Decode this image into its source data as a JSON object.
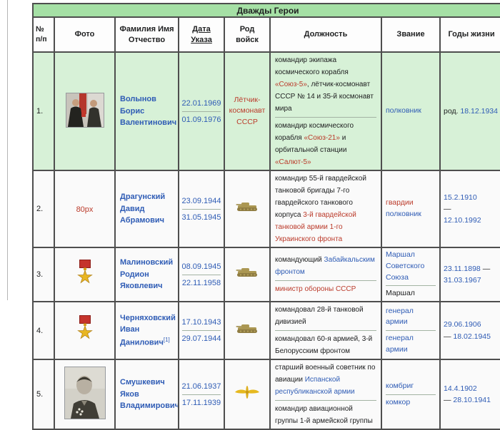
{
  "table": {
    "title": "Дважды Герои",
    "columns": [
      "№ п/п",
      "Фото",
      "Фамилия Имя Отчество",
      "Дата Указа",
      "Род войск",
      "Должность",
      "Звание",
      "Годы жизни"
    ]
  },
  "colors": {
    "link_blue": "#2f5cb5",
    "link_red": "#bb3b2b",
    "title_green": "#a5e0a5",
    "row_highlight_green": "#d7f1d7",
    "row_bg": "#fafafa",
    "table_border": "#4e4e4e",
    "tank_gold": "#ab9752",
    "wings_gold": "#e6b91f",
    "medal_ribbon_red": "#c5342c",
    "medal_star_gold": "#e8b623"
  },
  "rows": [
    {
      "num": "1.",
      "highlight": true,
      "photo": {
        "icon": "award-ceremony-photo"
      },
      "name": {
        "lines": [
          "Волынов",
          "Борис",
          "Валентинович"
        ],
        "sup": ""
      },
      "decree_dates": [
        "22.01.1969",
        "01.09.1976"
      ],
      "branch": {
        "label": "Лётчик-космонавт СССР",
        "color": "red"
      },
      "position": [
        [
          {
            "t": "командир экипажа космического корабля ",
            "c": "plain"
          },
          {
            "t": "«Союз-5»",
            "c": "red"
          },
          {
            "t": ", лётчик-космонавт СССР № 14 и 35-й космонавт мира",
            "c": "plain"
          }
        ],
        [
          {
            "t": "командир космического корабля ",
            "c": "plain"
          },
          {
            "t": "«Союз-21»",
            "c": "red"
          },
          {
            "t": " и орбитальной станции ",
            "c": "plain"
          },
          {
            "t": "«Салют-5»",
            "c": "red"
          }
        ]
      ],
      "rank": [
        [
          {
            "t": "полковник",
            "c": "blue"
          }
        ]
      ],
      "years": [
        [
          {
            "t": "род. ",
            "c": "plain"
          },
          {
            "t": "18.12.1934",
            "c": "blue"
          }
        ]
      ]
    },
    {
      "num": "2.",
      "highlight": false,
      "photo": {
        "label": "80px"
      },
      "name": {
        "lines": [
          "Драгунский",
          "Давид",
          "Абрамович"
        ],
        "sup": ""
      },
      "decree_dates": [
        "23.09.1944",
        "31.05.1945"
      ],
      "branch": {
        "icon": "tank-icon"
      },
      "position": [
        [
          {
            "t": "командир 55-й гвардейской танковой бригады 7-го гвардейского танкового корпуса ",
            "c": "plain"
          },
          {
            "t": "3-й гвардейской танковой армии 1-го Украинского фронта",
            "c": "red"
          }
        ]
      ],
      "rank": [
        [
          {
            "t": "гвардии ",
            "c": "red"
          },
          {
            "t": "полковник",
            "c": "blue"
          }
        ]
      ],
      "years": [
        [
          {
            "t": "15.2.1910",
            "c": "blue",
            "block": true
          },
          {
            "t": "—",
            "c": "plain",
            "block": true
          },
          {
            "t": "12.10.1992",
            "c": "blue",
            "block": true
          }
        ]
      ]
    },
    {
      "num": "3.",
      "highlight": false,
      "photo": {
        "icon": "hero-star-medal-icon"
      },
      "name": {
        "lines": [
          "Малиновский",
          "Родион",
          "Яковлевич"
        ],
        "sup": ""
      },
      "decree_dates": [
        "08.09.1945",
        "22.11.1958"
      ],
      "branch": {
        "icon": "tank-icon"
      },
      "position": [
        [
          {
            "t": "командующий ",
            "c": "plain"
          },
          {
            "t": "Забайкальским фронтом",
            "c": "blue"
          }
        ],
        [
          {
            "t": "министр обороны СССР",
            "c": "red"
          }
        ]
      ],
      "rank": [
        [
          {
            "t": "Маршал Советского Союза",
            "c": "blue"
          }
        ],
        [
          {
            "t": "Маршал",
            "c": "plain"
          }
        ]
      ],
      "years": [
        [
          {
            "t": "23.11.1898",
            "c": "blue"
          },
          {
            "t": " — ",
            "c": "plain"
          },
          {
            "t": "31.03.1967",
            "c": "blue"
          }
        ]
      ]
    },
    {
      "num": "4.",
      "highlight": false,
      "photo": {
        "icon": "hero-star-medal-icon"
      },
      "name": {
        "lines": [
          "Черняховский",
          "Иван",
          "Данилович"
        ],
        "sup": "[1]"
      },
      "decree_dates": [
        "17.10.1943",
        "29.07.1944"
      ],
      "branch": {
        "icon": "tank-icon"
      },
      "position": [
        [
          {
            "t": "командовал 28-й танковой дивизией",
            "c": "plain"
          }
        ],
        [
          {
            "t": "командовал 60-я армией, 3-й Белорусским фронтом",
            "c": "plain"
          }
        ]
      ],
      "rank": [
        [
          {
            "t": "генерал армии",
            "c": "blue"
          }
        ],
        [
          {
            "t": "генерал армии",
            "c": "blue"
          }
        ]
      ],
      "years": [
        [
          {
            "t": "29.06.1906",
            "c": "blue",
            "block": true
          },
          {
            "t": "— ",
            "c": "plain"
          },
          {
            "t": "18.02.1945",
            "c": "blue"
          }
        ]
      ]
    },
    {
      "num": "5.",
      "highlight": false,
      "photo": {
        "icon": "portrait-photo"
      },
      "name": {
        "lines": [
          "Смушкевич",
          "Яков",
          "Владимирович"
        ],
        "sup": ""
      },
      "decree_dates": [
        "21.06.1937",
        "17.11.1939"
      ],
      "branch": {
        "icon": "winged-propeller-icon"
      },
      "position": [
        [
          {
            "t": "старший военный советник по авиации ",
            "c": "plain"
          },
          {
            "t": "Испанской республиканской армии",
            "c": "blue"
          }
        ],
        [
          {
            "t": "командир авиационной группы 1-й армейской группы",
            "c": "plain"
          }
        ]
      ],
      "rank": [
        [
          {
            "t": "комбриг",
            "c": "blue"
          }
        ],
        [
          {
            "t": "комкор",
            "c": "blue"
          }
        ]
      ],
      "years": [
        [
          {
            "t": "14.4.1902",
            "c": "blue",
            "block": true
          },
          {
            "t": "— ",
            "c": "plain"
          },
          {
            "t": "28.10.1941",
            "c": "blue"
          }
        ]
      ]
    }
  ]
}
